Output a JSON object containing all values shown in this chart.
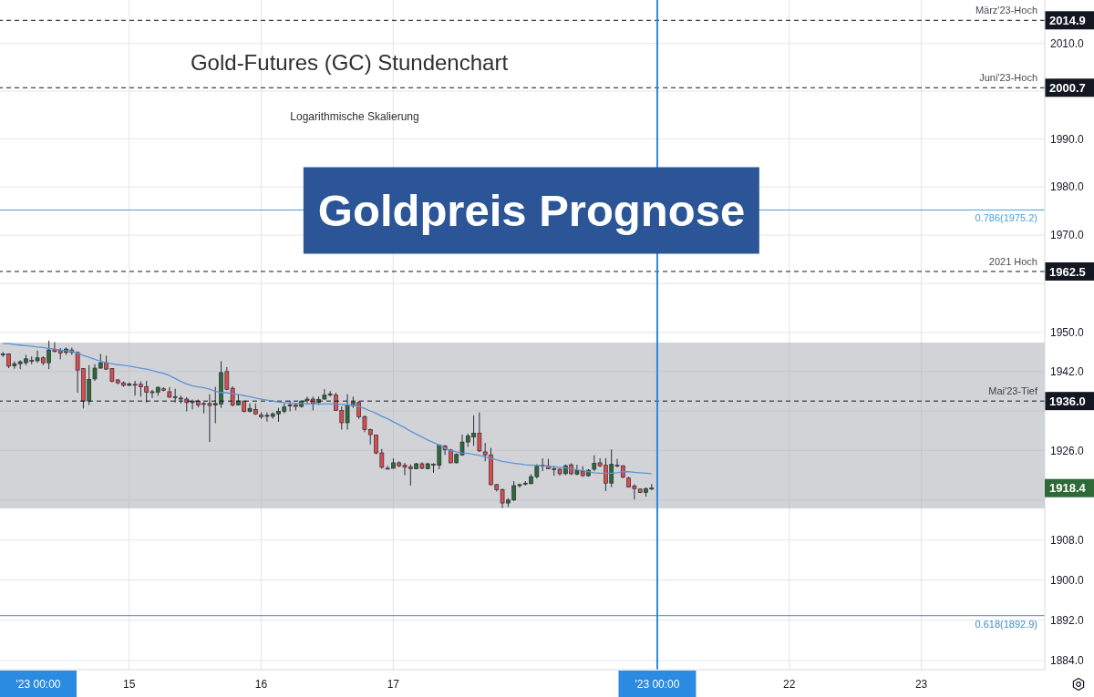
{
  "chart_data": {
    "type": "candlestick",
    "title": "Goldpreis Prognose",
    "subtitle": "Gold-Futures (GC) Stundenchart",
    "annotations": [
      "Logarithmische Skalierung",
      "'23 00:00",
      {
        "text": "März'23-Hoch",
        "y": 2014.9
      },
      {
        "text": "Juni'23-Hoch",
        "y": 2000.7
      },
      {
        "text": "2021 Hoch",
        "y": 1962.5
      },
      {
        "text": "Mai'23-Tief",
        "y": 1936.0
      }
    ],
    "categories": [
      null,
      null,
      null,
      null,
      null,
      null,
      null,
      null,
      null,
      null,
      null,
      null,
      null,
      null,
      null,
      null,
      null,
      null,
      null,
      null,
      null,
      null,
      "15",
      null,
      null,
      null,
      null,
      null,
      null,
      null,
      null,
      null,
      null,
      null,
      null,
      null,
      null,
      null,
      null,
      null,
      null,
      null,
      null,
      null,
      null,
      "16",
      null,
      null,
      null,
      null,
      null,
      null,
      null,
      null,
      null,
      null,
      null,
      null,
      null,
      null,
      null,
      null,
      null,
      null,
      null,
      null,
      null,
      null,
      "17",
      null,
      null,
      null,
      null,
      null,
      null,
      null,
      null,
      null,
      null,
      null,
      null,
      null,
      null,
      null,
      null,
      null,
      null,
      null,
      null,
      null,
      null,
      null,
      null,
      null,
      null,
      null,
      null,
      null,
      null,
      null,
      null,
      null,
      null,
      null,
      null,
      null,
      null,
      null,
      null,
      null,
      null,
      null,
      null,
      null,
      "'23 00:00",
      null,
      null,
      null,
      null,
      null,
      null,
      null,
      null,
      null,
      null,
      null,
      null,
      null,
      null,
      null,
      null,
      null,
      null,
      null,
      null,
      null,
      null,
      "22",
      null,
      null,
      null,
      null,
      null,
      null,
      null,
      null,
      null,
      null,
      null,
      null,
      null,
      null,
      null,
      null,
      null,
      null,
      null,
      null,
      null,
      null,
      "23",
      null,
      null,
      null,
      null,
      null,
      null,
      null,
      null,
      null,
      null,
      null,
      null,
      null,
      null,
      null,
      null,
      null,
      null,
      null,
      null,
      null
    ],
    "ohlc": [
      [
        1945.4,
        1946.0,
        1945.0,
        1945.6
      ],
      [
        1945.6,
        1945.7,
        1942.7,
        1943.1
      ],
      [
        1943.2,
        1944.1,
        1942.6,
        1943.6
      ],
      [
        1943.6,
        1944.3,
        1942.5,
        1944.0
      ],
      [
        1943.8,
        1945.4,
        1943.3,
        1944.6
      ],
      [
        1944.3,
        1945.1,
        1943.5,
        1944.2
      ],
      [
        1944.2,
        1946.3,
        1943.8,
        1944.8
      ],
      [
        1944.8,
        1945.1,
        1943.3,
        1943.8
      ],
      [
        1943.8,
        1948.3,
        1942.5,
        1946.4
      ],
      [
        1946.5,
        1948.0,
        1945.9,
        1946.1
      ],
      [
        1946.3,
        1946.8,
        1944.5,
        1945.8
      ],
      [
        1945.9,
        1946.9,
        1945.4,
        1946.6
      ],
      [
        1946.4,
        1946.9,
        1945.4,
        1945.9
      ],
      [
        1945.9,
        1946.1,
        1937.7,
        1942.3
      ],
      [
        1942.6,
        1942.7,
        1934.5,
        1936.0
      ],
      [
        1936.0,
        1943.3,
        1935.2,
        1940.4
      ],
      [
        1940.5,
        1943.5,
        1940.1,
        1942.7
      ],
      [
        1942.7,
        1945.6,
        1942.6,
        1943.8
      ],
      [
        1943.8,
        1945.2,
        1942.3,
        1942.5
      ],
      [
        1942.6,
        1942.7,
        1939.8,
        1940.0
      ],
      [
        1940.3,
        1940.5,
        1939.4,
        1939.7
      ],
      [
        1939.7,
        1940.0,
        1938.9,
        1939.2
      ],
      [
        1939.2,
        1939.8,
        1939.0,
        1939.5
      ],
      [
        1939.4,
        1940.1,
        1937.1,
        1939.3
      ],
      [
        1939.4,
        1940.0,
        1936.9,
        1938.9
      ],
      [
        1938.9,
        1940.1,
        1935.7,
        1937.8
      ],
      [
        1937.9,
        1938.3,
        1936.6,
        1937.7
      ],
      [
        1937.8,
        1938.9,
        1937.1,
        1938.8
      ],
      [
        1938.5,
        1938.8,
        1938.0,
        1938.2
      ],
      [
        1937.9,
        1938.8,
        1936.6,
        1936.8
      ],
      [
        1936.9,
        1938.5,
        1935.7,
        1936.8
      ],
      [
        1936.6,
        1937.1,
        1935.5,
        1936.4
      ],
      [
        1936.4,
        1936.8,
        1933.9,
        1935.7
      ],
      [
        1935.7,
        1936.3,
        1934.3,
        1936.0
      ],
      [
        1936.0,
        1936.3,
        1934.7,
        1935.2
      ],
      [
        1935.5,
        1935.8,
        1933.5,
        1935.4
      ],
      [
        1935.5,
        1937.4,
        1927.7,
        1935.1
      ],
      [
        1935.2,
        1938.9,
        1931.5,
        1935.5
      ],
      [
        1935.4,
        1944.1,
        1934.6,
        1941.8
      ],
      [
        1942.0,
        1942.9,
        1938.2,
        1938.4
      ],
      [
        1938.6,
        1939.0,
        1934.9,
        1935.2
      ],
      [
        1935.2,
        1937.4,
        1935.1,
        1936.0
      ],
      [
        1936.0,
        1936.1,
        1933.7,
        1933.9
      ],
      [
        1933.9,
        1935.5,
        1933.7,
        1934.5
      ],
      [
        1934.3,
        1935.5,
        1933.2,
        1933.4
      ],
      [
        1933.2,
        1933.7,
        1932.4,
        1932.8
      ],
      [
        1932.9,
        1933.7,
        1931.8,
        1933.1
      ],
      [
        1932.9,
        1933.7,
        1932.4,
        1933.4
      ],
      [
        1933.4,
        1934.6,
        1931.8,
        1933.9
      ],
      [
        1933.9,
        1935.5,
        1933.5,
        1934.8
      ],
      [
        1935.1,
        1936.1,
        1933.9,
        1935.2
      ],
      [
        1935.2,
        1935.6,
        1934.1,
        1934.9
      ],
      [
        1934.9,
        1936.1,
        1934.7,
        1936.0
      ],
      [
        1936.1,
        1936.9,
        1935.5,
        1936.4
      ],
      [
        1936.4,
        1936.9,
        1934.1,
        1935.5
      ],
      [
        1935.7,
        1936.9,
        1935.2,
        1936.3
      ],
      [
        1936.4,
        1938.4,
        1936.3,
        1937.2
      ],
      [
        1937.3,
        1938.0,
        1936.9,
        1937.4
      ],
      [
        1937.2,
        1937.7,
        1934.0,
        1934.1
      ],
      [
        1934.1,
        1934.9,
        1930.2,
        1931.6
      ],
      [
        1931.6,
        1937.4,
        1930.2,
        1935.1
      ],
      [
        1935.1,
        1936.9,
        1934.6,
        1935.8
      ],
      [
        1935.7,
        1936.0,
        1932.4,
        1932.8
      ],
      [
        1932.8,
        1933.1,
        1929.7,
        1930.2
      ],
      [
        1930.2,
        1930.4,
        1927.2,
        1929.2
      ],
      [
        1929.1,
        1929.2,
        1925.2,
        1925.5
      ],
      [
        1925.5,
        1926.3,
        1922.3,
        1922.6
      ],
      [
        1922.4,
        1922.9,
        1922.2,
        1922.3
      ],
      [
        1922.4,
        1924.4,
        1922.3,
        1923.5
      ],
      [
        1923.5,
        1923.8,
        1922.6,
        1922.9
      ],
      [
        1923.0,
        1923.5,
        1921.0,
        1922.6
      ],
      [
        1922.7,
        1923.2,
        1918.9,
        1922.3
      ],
      [
        1922.3,
        1923.5,
        1922.2,
        1923.3
      ],
      [
        1923.3,
        1923.6,
        1922.2,
        1922.4
      ],
      [
        1922.3,
        1923.5,
        1922.2,
        1923.3
      ],
      [
        1923.2,
        1923.4,
        1921.5,
        1923.1
      ],
      [
        1923.0,
        1927.2,
        1922.2,
        1927.1
      ],
      [
        1926.9,
        1927.1,
        1925.1,
        1926.1
      ],
      [
        1926.1,
        1926.3,
        1923.4,
        1923.5
      ],
      [
        1923.5,
        1925.4,
        1923.4,
        1925.2
      ],
      [
        1925.1,
        1929.2,
        1924.9,
        1927.7
      ],
      [
        1927.7,
        1929.4,
        1926.7,
        1928.9
      ],
      [
        1928.7,
        1933.1,
        1926.9,
        1929.5
      ],
      [
        1929.5,
        1933.7,
        1925.7,
        1925.9
      ],
      [
        1925.7,
        1927.5,
        1923.8,
        1925.1
      ],
      [
        1925.1,
        1926.5,
        1918.9,
        1919.1
      ],
      [
        1919.1,
        1919.2,
        1917.7,
        1918.1
      ],
      [
        1918.1,
        1918.3,
        1914.4,
        1915.4
      ],
      [
        1915.4,
        1916.4,
        1914.6,
        1916.0
      ],
      [
        1916.0,
        1919.8,
        1915.8,
        1918.9
      ],
      [
        1918.9,
        1919.3,
        1918.5,
        1919.1
      ],
      [
        1919.3,
        1919.8,
        1918.9,
        1919.4
      ],
      [
        1919.3,
        1921.2,
        1919.2,
        1920.7
      ],
      [
        1920.7,
        1923.2,
        1920.3,
        1922.8
      ],
      [
        1922.8,
        1924.4,
        1921.8,
        1923.0
      ],
      [
        1922.9,
        1924.3,
        1922.2,
        1922.3
      ],
      [
        1922.3,
        1922.9,
        1920.9,
        1922.1
      ],
      [
        1922.2,
        1922.4,
        1920.9,
        1921.3
      ],
      [
        1921.3,
        1923.2,
        1921.0,
        1922.9
      ],
      [
        1923.1,
        1923.4,
        1921.0,
        1921.3
      ],
      [
        1921.2,
        1923.1,
        1921.0,
        1921.9
      ],
      [
        1921.8,
        1922.8,
        1920.7,
        1920.9
      ],
      [
        1920.9,
        1922.2,
        1920.7,
        1922.0
      ],
      [
        1922.2,
        1925.0,
        1921.8,
        1923.4
      ],
      [
        1923.5,
        1924.4,
        1922.6,
        1922.9
      ],
      [
        1923.0,
        1924.4,
        1917.8,
        1919.4
      ],
      [
        1919.4,
        1926.2,
        1918.6,
        1923.2
      ],
      [
        1923.0,
        1924.3,
        1922.6,
        1922.9
      ],
      [
        1922.9,
        1923.0,
        1920.4,
        1920.6
      ],
      [
        1920.4,
        1920.7,
        1918.5,
        1918.6
      ],
      [
        1918.8,
        1919.2,
        1916.1,
        1918.3
      ],
      [
        1918.2,
        1918.3,
        1917.4,
        1917.5
      ],
      [
        1917.5,
        1918.5,
        1916.7,
        1918.3
      ],
      [
        1918.2,
        1919.2,
        1918.0,
        1918.4
      ],
      null,
      null,
      null,
      null,
      null,
      null,
      null,
      null,
      null,
      null,
      null,
      null,
      null,
      null,
      null,
      null,
      null,
      null,
      null,
      null,
      null,
      null,
      null,
      null,
      null,
      null,
      null,
      null,
      null,
      null,
      null,
      null,
      null,
      null,
      null,
      null,
      null,
      null,
      null,
      null,
      null,
      null,
      null,
      null,
      null,
      null,
      null,
      null,
      null,
      null,
      null,
      null,
      null,
      null,
      null,
      null,
      null,
      null,
      null,
      null,
      null,
      null,
      null,
      null,
      null,
      null,
      null,
      null
    ],
    "colors": [
      "#2d6a37",
      "#dd4b4b",
      "#2d6a37",
      "#2d6a37",
      "#2d6a37",
      "#dd4b4b",
      "#2d6a37",
      "#dd4b4b",
      "#2d6a37",
      "#dd4b4b",
      "#dd4b4b",
      "#2d6a37",
      "#dd4b4b",
      "#dd4b4b",
      "#dd4b4b",
      "#2d6a37",
      "#2d6a37",
      "#2d6a37",
      "#dd4b4b",
      "#dd4b4b",
      "#dd4b4b",
      "#dd4b4b",
      "#2d6a37",
      "#dd4b4b",
      "#dd4b4b",
      "#dd4b4b",
      "#dd4b4b",
      "#2d6a37",
      "#dd4b4b",
      "#dd4b4b",
      "#dd4b4b",
      "#dd4b4b",
      "#dd4b4b",
      "#2d6a37",
      "#dd4b4b",
      "#dd4b4b",
      "#dd4b4b",
      "#2d6a37",
      "#2d6a37",
      "#dd4b4b",
      "#dd4b4b",
      "#2d6a37",
      "#dd4b4b",
      "#2d6a37",
      "#dd4b4b",
      "#dd4b4b",
      "#2d6a37",
      "#2d6a37",
      "#2d6a37",
      "#2d6a37",
      "#2d6a37",
      "#dd4b4b",
      "#2d6a37",
      "#2d6a37",
      "#dd4b4b",
      "#2d6a37",
      "#2d6a37",
      "#2d6a37",
      "#dd4b4b",
      "#dd4b4b",
      "#2d6a37",
      "#2d6a37",
      "#dd4b4b",
      "#dd4b4b",
      "#dd4b4b",
      "#dd4b4b",
      "#dd4b4b",
      "#dd4b4b",
      "#2d6a37",
      "#dd4b4b",
      "#dd4b4b",
      "#dd4b4b",
      "#2d6a37",
      "#dd4b4b",
      "#2d6a37",
      "#dd4b4b",
      "#2d6a37",
      "#dd4b4b",
      "#dd4b4b",
      "#2d6a37",
      "#2d6a37",
      "#2d6a37",
      "#2d6a37",
      "#dd4b4b",
      "#dd4b4b",
      "#dd4b4b",
      "#dd4b4b",
      "#dd4b4b",
      "#2d6a37",
      "#2d6a37",
      "#2d6a37",
      "#2d6a37",
      "#2d6a37",
      "#2d6a37",
      "#2d6a37",
      "#dd4b4b",
      "#dd4b4b",
      "#dd4b4b",
      "#2d6a37",
      "#dd4b4b",
      "#2d6a37",
      "#dd4b4b",
      "#2d6a37",
      "#2d6a37",
      "#dd4b4b",
      "#dd4b4b",
      "#2d6a37",
      "#dd4b4b",
      "#dd4b4b",
      "#dd4b4b",
      "#dd4b4b",
      "#dd4b4b",
      "#2d6a37",
      "#2d6a37",
      null,
      null,
      null,
      null,
      null,
      null,
      null,
      null,
      null,
      null,
      null,
      null,
      null,
      null,
      null,
      null,
      null,
      null,
      null,
      null,
      null,
      null,
      null,
      null,
      null,
      null,
      null,
      null,
      null,
      null,
      null,
      null,
      null,
      null,
      null,
      null,
      null,
      null,
      null,
      null,
      null,
      null,
      null,
      null,
      null,
      null,
      null,
      null,
      null,
      null,
      null,
      null,
      null,
      null,
      null,
      null,
      null,
      null,
      null,
      null,
      null,
      null,
      null,
      null,
      null,
      null,
      null,
      null
    ],
    "series": [
      {
        "type": "line",
        "color": "#5b95d6",
        "values": [
          1947.7,
          1947.7,
          1947.5,
          1947.4,
          1947.3,
          1947.2,
          1947.0,
          1946.9,
          1946.7,
          1946.6,
          1946.4,
          1946.2,
          1946.1,
          1945.8,
          1945.3,
          1944.9,
          1944.5,
          1944.1,
          1943.8,
          1943.6,
          1943.4,
          1943.3,
          1943.1,
          1942.9,
          1942.7,
          1942.5,
          1942.2,
          1941.9,
          1941.6,
          1941.2,
          1940.6,
          1940.0,
          1939.5,
          1939.1,
          1938.9,
          1938.7,
          1938.4,
          1938.0,
          1937.7,
          1937.7,
          1937.5,
          1937.3,
          1937.1,
          1936.9,
          1936.6,
          1936.4,
          1936.2,
          1936.0,
          1935.8,
          1935.7,
          1935.6,
          1935.5,
          1935.5,
          1935.4,
          1935.4,
          1935.4,
          1935.4,
          1935.4,
          1935.4,
          1935.3,
          1935.2,
          1935.2,
          1934.9,
          1934.5,
          1934.0,
          1933.5,
          1932.9,
          1932.4,
          1931.8,
          1931.2,
          1930.6,
          1929.9,
          1929.3,
          1928.7,
          1928.1,
          1927.6,
          1927.1,
          1926.4,
          1926.0,
          1925.7,
          1925.5,
          1925.4,
          1925.2,
          1925.0,
          1924.7,
          1924.4,
          1924.1,
          1923.8,
          1923.6,
          1923.4,
          1923.3,
          1923.1,
          1923.0,
          1923.0,
          1922.9,
          1922.8,
          1922.7,
          1922.6,
          1922.5,
          1922.3,
          1922.1,
          1921.9,
          1921.7,
          1921.5,
          1921.4,
          1921.4,
          1921.4,
          1921.5,
          1921.7,
          1921.7,
          1921.6,
          1921.5,
          1921.4,
          1921.3,
          null,
          null,
          null,
          null,
          null,
          null,
          null,
          null,
          null,
          null,
          null,
          null,
          null,
          null,
          null,
          null,
          null,
          null,
          null,
          null,
          null,
          null,
          null,
          null,
          null,
          null,
          null,
          null,
          null,
          null,
          null,
          null,
          null,
          null,
          null,
          null,
          null,
          null,
          null,
          null,
          null,
          null,
          null,
          null,
          null,
          null,
          null,
          null,
          null,
          null,
          null,
          null,
          null,
          null,
          null,
          null,
          null,
          null,
          null,
          null,
          null,
          null,
          null,
          null,
          null,
          null,
          null,
          null
        ]
      }
    ],
    "ylim": [
      1882.2,
      2019.2
    ],
    "yticks": [
      {
        "value": 1884,
        "label": "1884.0"
      },
      {
        "value": 1892,
        "label": "1892.0"
      },
      {
        "value": 1900,
        "label": "1900.0"
      },
      {
        "value": 1908,
        "label": "1908.0"
      },
      {
        "value": 1916,
        "label": null
      },
      1918.4,
      {
        "value": 1926,
        "label": "1926.0"
      },
      {
        "value": 1934,
        "label": null
      },
      {
        "value": 1942,
        "label": "1942.0"
      },
      {
        "value": 1950,
        "label": "1950.0"
      },
      {
        "value": 1960,
        "label": null
      },
      {
        "value": 1970,
        "label": "1970.0"
      },
      {
        "value": 1980,
        "label": "1980.0"
      },
      {
        "value": 1990,
        "label": "1990.0"
      },
      {
        "value": 2000,
        "label": null
      },
      {
        "value": 2010,
        "label": "2010.0"
      }
    ],
    "log": true,
    "grid": true,
    "ref_lines": [
      {
        "axis": "y",
        "value": 2014.9,
        "label": "2014.9",
        "color": "#131722",
        "line_style": "dashed"
      },
      {
        "axis": "y",
        "value": 2000.7,
        "label": "2000.7",
        "color": "#131722",
        "line_style": "dashed"
      },
      {
        "axis": "y",
        "value": 1975.2,
        "label": "0.786(1975.2)",
        "color": "#4a9fd8",
        "line_style": "solid"
      },
      {
        "axis": "y",
        "value": 1962.5,
        "label": "1962.5",
        "color": "#131722",
        "line_style": "dashed"
      },
      {
        "axis": "y",
        "value": 1936.0,
        "label": "1936.0",
        "color": "#131722",
        "line_style": "dashed"
      },
      {
        "axis": "y",
        "value": 1892.9,
        "label": "0.618(1892.9)",
        "color": "#3d8cc4",
        "line_style": "solid"
      },
      {
        "axis": "x",
        "value": "'23 00:00",
        "color": "#2a8be0",
        "line_style": "solid"
      }
    ],
    "bands": [
      {
        "axis": "y",
        "from": 1914.3,
        "to": 1947.9,
        "color": "#d2d3d7"
      }
    ]
  }
}
